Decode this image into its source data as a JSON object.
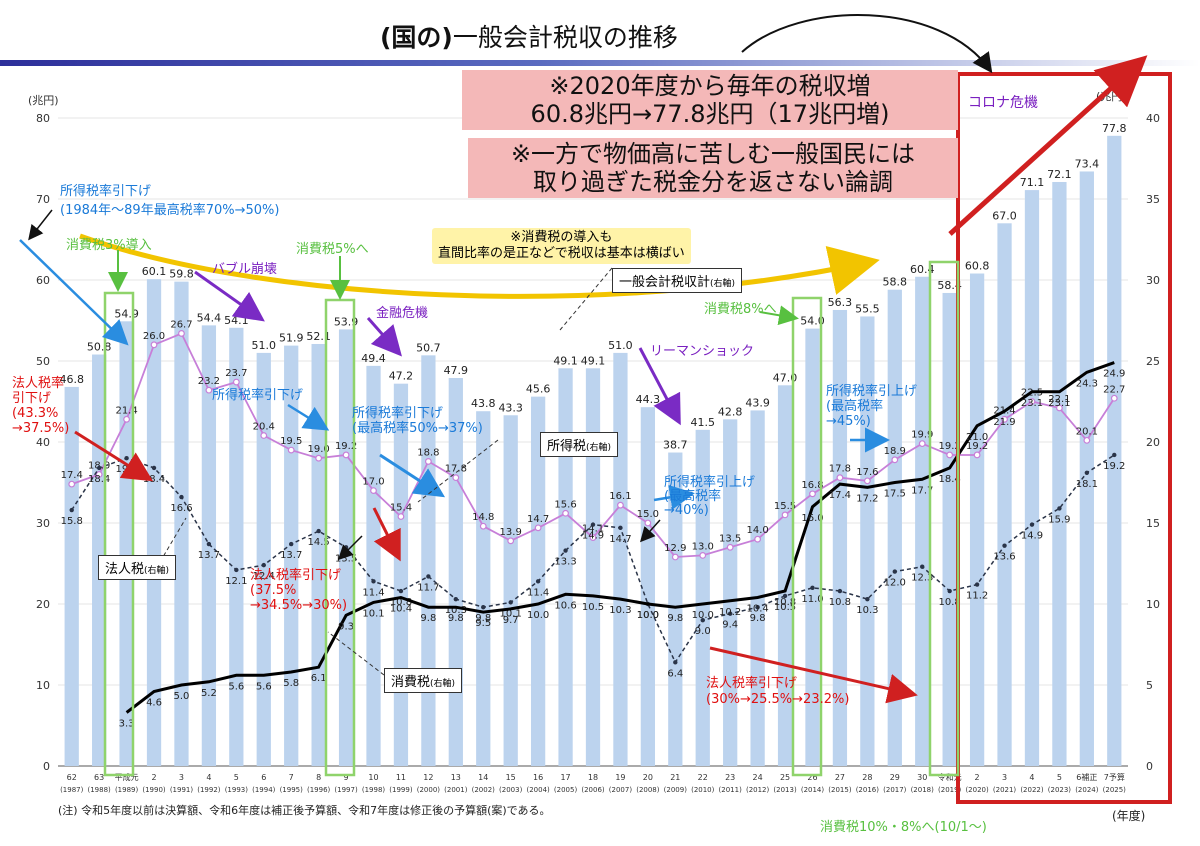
{
  "header": {
    "title_prefix": "(国の)",
    "title_main": "一般会計税収の推移"
  },
  "callouts": {
    "highlight_1_line1": "※2020年度から毎年の税収増",
    "highlight_1_line2": "60.8兆円→77.8兆円（17兆円増)",
    "highlight_2_line1": "※一方で物価高に苦しむ一般国民には",
    "highlight_2_line2": "取り過ぎた税金分を返さない論調",
    "yellow_line1": "※消費税の導入も",
    "yellow_line2": "直間比率の是正などで税収は基本は横ばい",
    "corona": "コロナ危機"
  },
  "annotations": {
    "income_cut_1984": "所得税率引下げ",
    "income_cut_1984_detail": "(1984年～89年最高税率70%→50%)",
    "consumption_3": "消費税3%導入",
    "bubble": "バブル崩壊",
    "consumption_5": "消費税5%へ",
    "financial_crisis": "金融危機",
    "lehman": "リーマンショック",
    "consumption_8": "消費税8%へ",
    "consumption_10": "消費税10%・8%へ(10/1～)",
    "corp_cut_1_line1": "法人税率",
    "corp_cut_1_line2": "引下げ",
    "corp_cut_1_line3": "(43.3%",
    "corp_cut_1_line4": "→37.5%)",
    "income_cut_2": "所得税率引下げ",
    "income_cut_3_line1": "所得税率引下げ",
    "income_cut_3_line2": "(最高税率50%→37%)",
    "corp_cut_2_line1": "法人税率引下げ",
    "corp_cut_2_line2": "(37.5%",
    "corp_cut_2_line3": "→34.5%→30%)",
    "income_up_1_line1": "所得税率引上げ",
    "income_up_1_line2": "(最高税率",
    "income_up_1_line3": "→40%)",
    "income_up_2_line1": "所得税率引上げ",
    "income_up_2_line2": "(最高税率",
    "income_up_2_line3": "→45%)",
    "corp_cut_3_line1": "法人税率引下げ",
    "corp_cut_3_line2": "(30%→25.5%→23.2%)"
  },
  "legend_boxes": {
    "general": "一般会計税収計",
    "general_sub": "(右軸)",
    "income": "所得税",
    "income_sub": "(右軸)",
    "corporate": "法人税",
    "corporate_sub": "(右軸)",
    "consumption": "消費税",
    "consumption_sub": "(右軸)"
  },
  "footnote": "(注) 令和5年度以前は決算額、令和6年度は補正後予算額、令和7年度は修正後の予算額(案)である。",
  "colors": {
    "bar": "#bcd3ee",
    "income": "#c77fd8",
    "corporate": "#2a3448",
    "consumption": "#000000",
    "red_box": "#d02020",
    "green_box": "#8fd36b",
    "blue_arrow": "#2a8de0",
    "purple_arrow": "#7a2bc4",
    "red_text": "#e01010",
    "blue_text": "#1a7ad8",
    "green_text": "#58c040",
    "purple_text": "#7a20c0",
    "yellow_arrow": "#f2c400"
  },
  "chart_data": {
    "type": "bar",
    "left_axis_unit": "(兆円)",
    "right_axis_unit": "(兆円)",
    "xlabel": "(年度)",
    "ylim_left": [
      0,
      80
    ],
    "ylim_right": [
      0,
      40
    ],
    "left_ticks": [
      "0",
      "10",
      "20",
      "30",
      "40",
      "50",
      "60",
      "70",
      "80"
    ],
    "right_ticks": [
      "0",
      "5",
      "10",
      "15",
      "20",
      "25",
      "30",
      "35",
      "40"
    ],
    "categories": [
      {
        "label": "62",
        "year": "(1987)"
      },
      {
        "label": "63",
        "year": "(1988)"
      },
      {
        "label": "平成元",
        "year": "(1989)"
      },
      {
        "label": "2",
        "year": "(1990)"
      },
      {
        "label": "3",
        "year": "(1991)"
      },
      {
        "label": "4",
        "year": "(1992)"
      },
      {
        "label": "5",
        "year": "(1993)"
      },
      {
        "label": "6",
        "year": "(1994)"
      },
      {
        "label": "7",
        "year": "(1995)"
      },
      {
        "label": "8",
        "year": "(1996)"
      },
      {
        "label": "9",
        "year": "(1997)"
      },
      {
        "label": "10",
        "year": "(1998)"
      },
      {
        "label": "11",
        "year": "(1999)"
      },
      {
        "label": "12",
        "year": "(2000)"
      },
      {
        "label": "13",
        "year": "(2001)"
      },
      {
        "label": "14",
        "year": "(2002)"
      },
      {
        "label": "15",
        "year": "(2003)"
      },
      {
        "label": "16",
        "year": "(2004)"
      },
      {
        "label": "17",
        "year": "(2005)"
      },
      {
        "label": "18",
        "year": "(2006)"
      },
      {
        "label": "19",
        "year": "(2007)"
      },
      {
        "label": "20",
        "year": "(2008)"
      },
      {
        "label": "21",
        "year": "(2009)"
      },
      {
        "label": "22",
        "year": "(2010)"
      },
      {
        "label": "23",
        "year": "(2011)"
      },
      {
        "label": "24",
        "year": "(2012)"
      },
      {
        "label": "25",
        "year": "(2013)"
      },
      {
        "label": "26",
        "year": "(2014)"
      },
      {
        "label": "27",
        "year": "(2015)"
      },
      {
        "label": "28",
        "year": "(2016)"
      },
      {
        "label": "29",
        "year": "(2017)"
      },
      {
        "label": "30",
        "year": "(2018)"
      },
      {
        "label": "令和元",
        "year": "(2019)"
      },
      {
        "label": "2",
        "year": "(2020)"
      },
      {
        "label": "3",
        "year": "(2021)"
      },
      {
        "label": "4",
        "year": "(2022)"
      },
      {
        "label": "5",
        "year": "(2023)"
      },
      {
        "label": "6補正",
        "year": "(2024)"
      },
      {
        "label": "7予算",
        "year": "(2025)"
      }
    ],
    "series": [
      {
        "name": "一般会計税収計",
        "axis": "left",
        "values": [
          46.8,
          50.8,
          54.9,
          60.1,
          59.8,
          54.4,
          54.1,
          51.0,
          51.9,
          52.1,
          53.9,
          49.4,
          47.2,
          50.7,
          47.9,
          43.8,
          43.3,
          45.6,
          49.1,
          49.1,
          51.0,
          44.3,
          38.7,
          41.5,
          42.8,
          43.9,
          47.0,
          54.0,
          56.3,
          55.5,
          58.8,
          60.4,
          58.4,
          60.8,
          67.0,
          71.1,
          72.1,
          73.4,
          77.8
        ]
      },
      {
        "name": "所得税",
        "axis": "right",
        "values": [
          17.4,
          18.0,
          21.4,
          26.0,
          26.7,
          23.2,
          23.7,
          20.4,
          19.5,
          19.0,
          19.2,
          17.0,
          15.4,
          18.8,
          17.8,
          14.8,
          13.9,
          14.7,
          15.6,
          14.1,
          16.1,
          15.0,
          12.9,
          13.0,
          13.5,
          14.0,
          15.5,
          16.8,
          17.8,
          17.6,
          18.9,
          19.9,
          19.2,
          19.2,
          21.4,
          22.5,
          22.1,
          20.1,
          22.7
        ]
      },
      {
        "name": "法人税",
        "axis": "right",
        "values": [
          15.8,
          18.4,
          19.0,
          18.4,
          16.6,
          13.7,
          12.1,
          12.4,
          13.7,
          14.5,
          13.5,
          11.4,
          10.8,
          11.7,
          10.3,
          9.8,
          10.1,
          11.4,
          13.3,
          14.9,
          14.7,
          10.0,
          6.4,
          9.0,
          9.4,
          9.8,
          10.5,
          11.0,
          10.8,
          10.3,
          12.0,
          12.3,
          10.8,
          11.2,
          13.6,
          14.9,
          15.9,
          18.1,
          19.2
        ]
      },
      {
        "name": "消費税",
        "axis": "right",
        "values": [
          null,
          null,
          3.3,
          4.6,
          5.0,
          5.2,
          5.6,
          5.6,
          5.8,
          6.1,
          9.3,
          10.1,
          10.4,
          9.8,
          9.8,
          9.5,
          9.7,
          10.0,
          10.6,
          10.5,
          10.3,
          10.0,
          9.8,
          10.0,
          10.2,
          10.4,
          10.8,
          16.0,
          17.4,
          17.2,
          17.5,
          17.7,
          18.4,
          21.0,
          21.9,
          23.1,
          23.1,
          24.3,
          24.9
        ]
      }
    ]
  }
}
